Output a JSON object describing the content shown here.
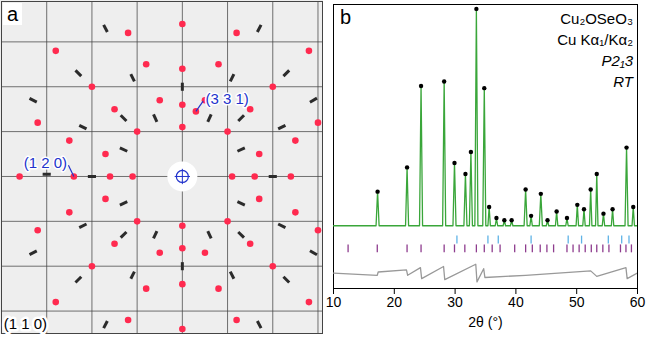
{
  "chart_data": [
    {
      "type": "scatter",
      "panel": "a",
      "xlim": [
        -4.0,
        3.1
      ],
      "ylim": [
        -3.5,
        3.9
      ],
      "xticks": [
        -4,
        -3,
        -2,
        -1,
        0,
        1,
        2,
        3
      ],
      "yticks": [
        -3,
        -2,
        -1,
        0,
        1,
        2,
        3
      ],
      "grid": true,
      "tick_labels": false,
      "series": [
        {
          "color": "#ff2a4f",
          "marker": "circle",
          "x": [
            -3.6,
            -2.4,
            -1.6,
            -1.1,
            1.1,
            1.6,
            2.4,
            0,
            0,
            0,
            0,
            0,
            0,
            0,
            0,
            1,
            2,
            1.5,
            2.8,
            -1,
            -2,
            -1.5,
            -2.8,
            1,
            2,
            -1,
            -2,
            -1.5,
            -2.8,
            1.5,
            2.8,
            0.5,
            1.7,
            -0.5,
            -1.7,
            0.5,
            -1.7,
            1.7,
            -0.5,
            0.8,
            2.5,
            -0.8,
            -2.5,
            -2.5,
            -0.8,
            0.8,
            2.5,
            0.3,
            1.2,
            -1.2,
            3.0,
            -3.2,
            -3.2,
            -1.2,
            1.2,
            3.0
          ],
          "values": [
            0,
            0,
            0,
            0,
            0,
            0,
            0,
            2.4,
            1.6,
            1.1,
            -1.1,
            -1.6,
            -2.4,
            3.4,
            -3.4,
            1,
            2,
            1.5,
            2.8,
            1,
            2,
            1.5,
            2.8,
            -1,
            -2,
            -1,
            -2,
            -1.5,
            -2.8,
            -1.5,
            -2.8,
            1.7,
            0.5,
            1.7,
            0.5,
            -1.7,
            -0.5,
            -0.5,
            -1.7,
            2.5,
            0.8,
            2.5,
            0.8,
            -0.8,
            -2.5,
            -2.5,
            -0.8,
            1.45,
            3.2,
            3.2,
            1.2,
            1.2,
            -1.2,
            -3.2,
            -3.2,
            -1.2
          ]
        },
        {
          "color": "#2b2b2b",
          "marker": "streak",
          "x": [
            -3.0,
            -2.0,
            2.0,
            0,
            0,
            1.3,
            -1.3,
            1.3,
            -1.3,
            2.3,
            -2.3,
            2.3,
            -2.3,
            1.1,
            -1.1,
            2.2,
            -2.2,
            2.2,
            -2.2,
            1.1,
            -1.1,
            0.6,
            -0.6,
            1.3,
            -1.3,
            1.3,
            -1.3,
            0.6,
            -0.6,
            2.9,
            -3.3,
            1.7,
            -1.7,
            -3.3,
            -1.7,
            1.7,
            2.9
          ],
          "values": [
            0.05,
            0,
            0,
            2.0,
            -2.0,
            1.3,
            1.3,
            -1.3,
            -1.3,
            2.3,
            2.3,
            -2.3,
            -2.3,
            2.2,
            2.2,
            1.1,
            1.1,
            -1.1,
            -1.1,
            -2.2,
            -2.2,
            1.3,
            1.3,
            0.6,
            0.6,
            -0.6,
            -0.6,
            -1.3,
            -1.3,
            1.7,
            1.7,
            3.3,
            3.3,
            -1.7,
            -3.3,
            -3.3,
            -1.7
          ]
        }
      ],
      "annotations": [
        {
          "text": "(3 3 1)",
          "x": 0.51,
          "y": 1.73,
          "point": [
            0.3,
            1.45
          ]
        },
        {
          "text": "(1 2 0)",
          "x": -2.55,
          "y": 0.3,
          "point": [
            -2.4,
            0
          ]
        },
        {
          "text": "(1 1 0)",
          "x": -3.95,
          "y": -3.3
        }
      ]
    },
    {
      "type": "line",
      "panel": "b",
      "xlabel": "2θ (°)",
      "xlim": [
        10,
        60
      ],
      "xticks": [
        10,
        20,
        30,
        40,
        50,
        60
      ],
      "ylim": [
        -27,
        102
      ],
      "yticks": [],
      "tick_labels": "x",
      "annotations": [
        "Cu₂OSeO₃",
        "Cu Kα₁/Kα₂",
        "P2₁3",
        "RT"
      ],
      "series": [
        {
          "type": "line",
          "color": "#3aa63a",
          "x": [
            10,
            17.0,
            17.25,
            17.5,
            21.85,
            22.1,
            22.35,
            24.15,
            24.4,
            24.65,
            27.95,
            28.2,
            28.45,
            29.65,
            29.9,
            30.15,
            31.45,
            31.7,
            31.95,
            32.35,
            32.6,
            32.85,
            33.25,
            33.5,
            33.75,
            34.55,
            34.8,
            35.05,
            35.4,
            35.6,
            35.8,
            36.6,
            36.8,
            37.0,
            37.9,
            38.1,
            38.3,
            39.1,
            39.3,
            39.5,
            41.35,
            41.6,
            41.85,
            42.3,
            42.5,
            42.7,
            43.85,
            44.1,
            44.35,
            45.0,
            45.2,
            45.4,
            46.5,
            46.7,
            46.9,
            48.2,
            48.4,
            48.6,
            49.9,
            50.1,
            50.3,
            51.0,
            51.2,
            51.4,
            52.1,
            52.3,
            52.5,
            53.1,
            53.3,
            53.5,
            54.2,
            54.4,
            54.6,
            55.7,
            55.9,
            56.1,
            57.95,
            58.2,
            58.45,
            59.1,
            59.3,
            59.5,
            60
          ],
          "values": [
            1.5,
            1.5,
            17,
            1.5,
            1.5,
            28,
            1.5,
            1.5,
            65,
            1.5,
            1.5,
            67,
            1.5,
            1.5,
            30,
            1.5,
            1.5,
            25,
            1.5,
            1.5,
            35,
            1.5,
            1.5,
            100,
            1.5,
            1.5,
            64,
            1.5,
            1.5,
            10,
            1.5,
            1.5,
            5,
            1.5,
            1.5,
            4,
            1.5,
            1.5,
            4,
            1.5,
            1.5,
            18,
            1.5,
            1.5,
            6,
            1.5,
            1.5,
            16,
            1.5,
            1.5,
            4,
            1.5,
            1.5,
            8,
            1.5,
            1.5,
            5,
            1.5,
            1.5,
            11,
            1.5,
            1.5,
            9,
            1.5,
            1.5,
            18,
            1.5,
            1.5,
            25,
            1.5,
            1.5,
            7,
            1.5,
            1.5,
            9,
            1.5,
            1.5,
            37,
            1.5,
            1.5,
            10,
            1.5,
            1.5
          ]
        },
        {
          "type": "scatter",
          "color": "#000000",
          "marker": "circle",
          "x": [
            17.25,
            22.1,
            24.4,
            28.2,
            29.9,
            31.7,
            32.6,
            33.5,
            34.8,
            35.6,
            36.8,
            38.1,
            39.3,
            41.6,
            42.5,
            44.1,
            45.2,
            46.7,
            48.4,
            50.1,
            51.2,
            52.3,
            53.3,
            54.4,
            55.9,
            58.2,
            59.3
          ],
          "values": [
            17,
            28,
            65,
            67,
            30,
            25,
            35,
            100,
            64,
            10,
            5,
            4,
            4,
            18,
            6,
            16,
            4,
            8,
            5,
            11,
            9,
            18,
            25,
            7,
            9,
            37,
            10
          ]
        },
        {
          "type": "line",
          "color": "#999999",
          "x": [
            10,
            17.2,
            17.35,
            22.0,
            22.2,
            24.3,
            24.5,
            28.1,
            28.3,
            33.4,
            33.6,
            34.7,
            34.9,
            41.6,
            52.3,
            53.3,
            58.1,
            58.3,
            60
          ],
          "values": [
            -20,
            -21,
            -19.5,
            -18.5,
            -21,
            -17.5,
            -22.5,
            -17,
            -23,
            -16,
            -24,
            -18,
            -22,
            -21,
            -19,
            -21.5,
            -17.5,
            -22.5,
            -20
          ]
        },
        {
          "type": "ticks",
          "color": "#8e3c8e",
          "x": [
            12.4,
            17.2,
            22.1,
            24.4,
            28.2,
            29.9,
            31.6,
            33.5,
            34.8,
            36.1,
            37.4,
            39.8,
            41.6,
            42.7,
            44.0,
            45.1,
            46.2,
            48.4,
            49.4,
            50.4,
            51.4,
            52.4,
            53.3,
            54.3,
            55.3,
            57.2,
            58.1,
            59.0
          ],
          "values": [
            -9,
            -9,
            -9,
            -9,
            -9,
            -9,
            -9,
            -9,
            -9,
            -9,
            -9,
            -9,
            -9,
            -9,
            -9,
            -9,
            -9,
            -9,
            -9,
            -9,
            -9,
            -9,
            -9,
            -9,
            -9,
            -9,
            -9,
            -9
          ]
        },
        {
          "type": "ticks",
          "color": "#5fb3e6",
          "x": [
            30.3,
            35.4,
            37.1,
            42.5,
            48.6,
            50.8,
            55.2,
            57.4,
            58.6
          ],
          "values": [
            -5,
            -5,
            -5,
            -5,
            -5,
            -5,
            -5,
            -5,
            -5
          ]
        }
      ]
    }
  ]
}
